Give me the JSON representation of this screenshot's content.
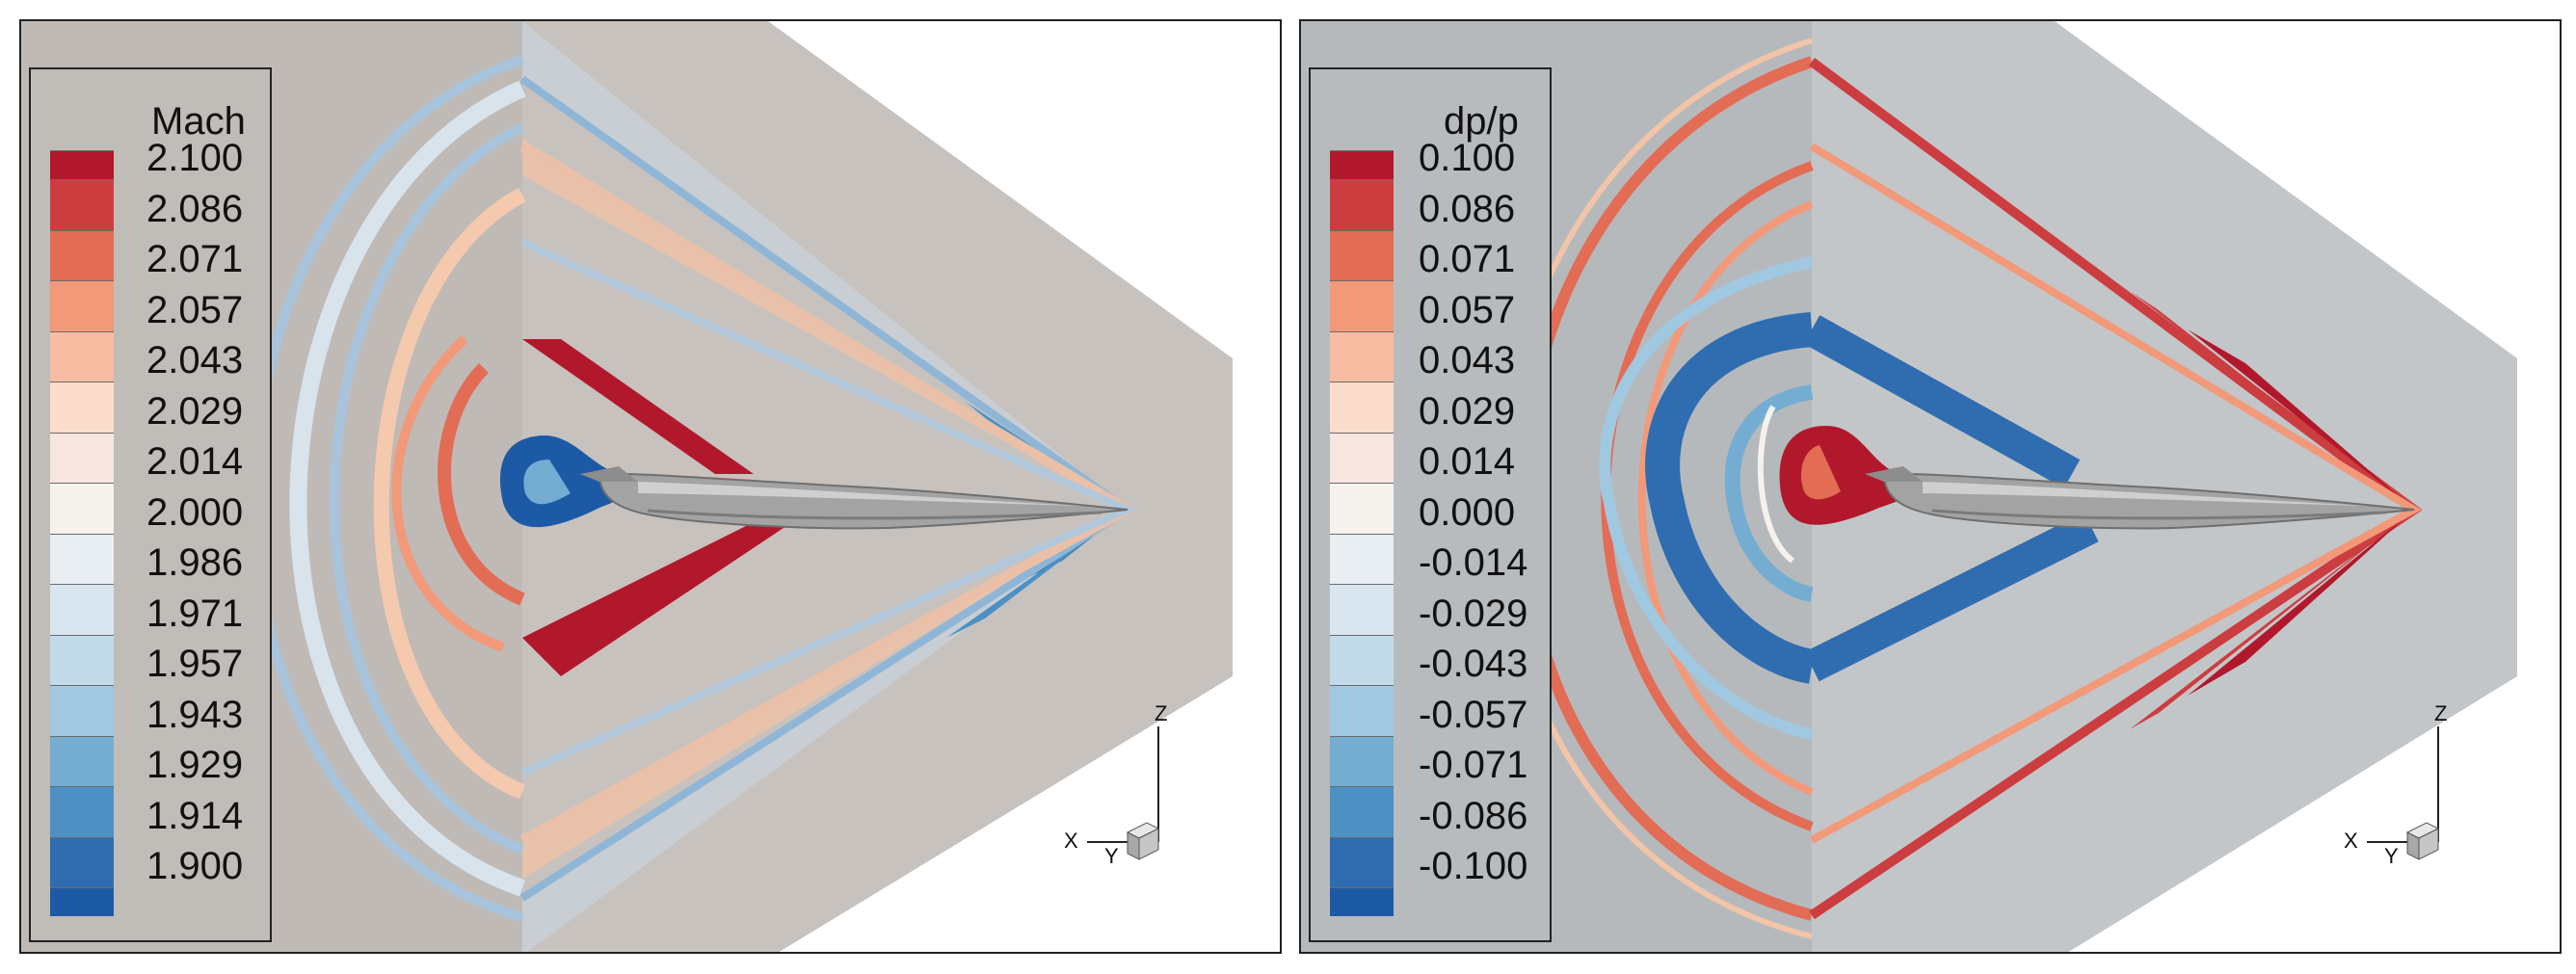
{
  "panels": [
    {
      "id": "mach",
      "legend_title": "Mach",
      "levels": [
        "2.100",
        "2.086",
        "2.071",
        "2.057",
        "2.043",
        "2.029",
        "2.014",
        "2.000",
        "1.986",
        "1.971",
        "1.957",
        "1.943",
        "1.929",
        "1.914",
        "1.900"
      ],
      "background_color": "#c5c0bc",
      "axes": {
        "x": "X",
        "y": "Y",
        "z": "Z"
      }
    },
    {
      "id": "dpp",
      "legend_title": "dp/p",
      "levels": [
        "0.100",
        "0.086",
        "0.071",
        "0.057",
        "0.043",
        "0.029",
        "0.014",
        "0.000",
        "-0.014",
        "-0.029",
        "-0.043",
        "-0.057",
        "-0.071",
        "-0.086",
        "-0.100"
      ],
      "background_color": "#bcbfc2",
      "axes": {
        "x": "X",
        "y": "Y",
        "z": "Z"
      }
    }
  ],
  "colormap": [
    "#b2182b",
    "#cc3d3f",
    "#e36c55",
    "#f2997a",
    "#f8bca2",
    "#fcdccb",
    "#f7e6df",
    "#f5f2ee",
    "#e9eef3",
    "#d9e6f0",
    "#c2dbea",
    "#a1c8e1",
    "#74add1",
    "#4c90c4",
    "#2f6db0",
    "#1d5aa5"
  ]
}
